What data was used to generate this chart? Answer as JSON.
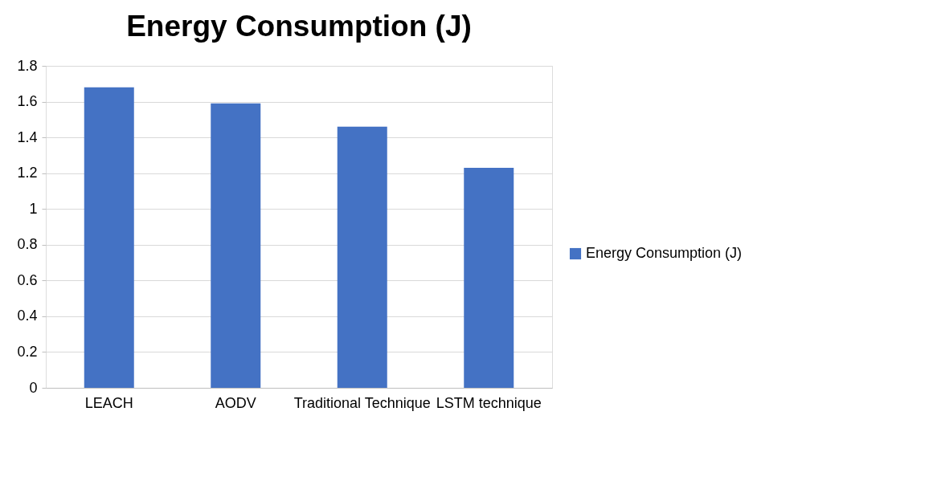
{
  "chart_data": {
    "type": "bar",
    "title": "Energy Consumption (J)",
    "categories": [
      "LEACH",
      "AODV",
      "Traditional Technique",
      "LSTM technique"
    ],
    "series": [
      {
        "name": "Energy Consumption (J)",
        "color": "#4472c4",
        "values": [
          1.68,
          1.59,
          1.46,
          1.23
        ]
      }
    ],
    "ylim": [
      0,
      1.8
    ],
    "yticks": [
      0,
      0.2,
      0.4,
      0.6,
      0.8,
      1,
      1.2,
      1.4,
      1.6,
      1.8
    ],
    "grid": "y",
    "legend": "right"
  }
}
